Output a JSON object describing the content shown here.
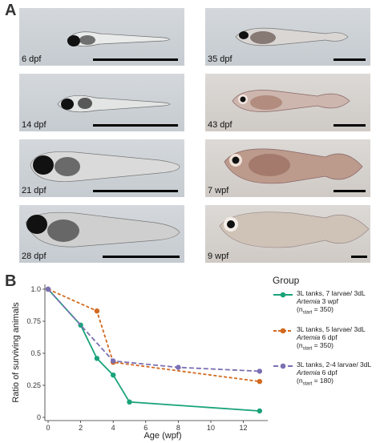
{
  "panels": {
    "a_label": "A",
    "b_label": "B"
  },
  "photos": [
    {
      "label": "6 dpf"
    },
    {
      "label": "14 dpf"
    },
    {
      "label": "21 dpf"
    },
    {
      "label": "28 dpf"
    },
    {
      "label": "35 dpf"
    },
    {
      "label": "43 dpf"
    },
    {
      "label": "7 wpf"
    },
    {
      "label": "9 wpf"
    }
  ],
  "legend": {
    "title": "Group",
    "items": [
      {
        "line1": "3L tanks, 7 larvae/ 3dL",
        "line2_italic": "Artemia",
        "line2_rest": " 3 wpf",
        "n_prefix": "(n",
        "n_sub": "start",
        "n_suffix": " = 350)",
        "color": "#1aa37a",
        "dash": "solid"
      },
      {
        "line1": "3L tanks, 5 larvae/ 3dL",
        "line2_italic": "Artemia",
        "line2_rest": " 6 dpf",
        "n_prefix": "(n",
        "n_sub": "start",
        "n_suffix": " = 350)",
        "color": "#d2691e",
        "dash": "dashed"
      },
      {
        "line1": "3L tanks, 2-4 larvae/ 3dL",
        "line2_italic": "Artemia",
        "line2_rest": " 6 dpf",
        "n_prefix": "(n",
        "n_sub": "start",
        "n_suffix": " = 180)",
        "color": "#7b6fb3",
        "dash": "dashed"
      }
    ]
  },
  "chart_data": {
    "type": "line",
    "xlabel": "Age (wpf)",
    "ylabel": "Ratio of surviving animals",
    "xlim": [
      0,
      13.5
    ],
    "ylim": [
      0,
      1.0
    ],
    "xticks": [
      0,
      2,
      4,
      6,
      8,
      10,
      12
    ],
    "yticks": [
      0,
      0.25,
      0.5,
      0.75,
      1.0
    ],
    "ytick_labels": [
      "0",
      "0.25",
      "0.5",
      "0.75",
      "1.0"
    ],
    "series": [
      {
        "name": "3L tanks, 7 larvae/ 3dL Artemia 3 wpf (nstart = 350)",
        "color": "#1aa37a",
        "dash": "solid",
        "x": [
          0,
          2,
          3,
          4,
          5,
          13
        ],
        "y": [
          1.0,
          0.72,
          0.46,
          0.33,
          0.12,
          0.05
        ]
      },
      {
        "name": "3L tanks, 5 larvae/ 3dL Artemia 6 dpf (nstart = 350)",
        "color": "#d2691e",
        "dash": "dashed",
        "x": [
          0,
          3,
          4,
          13
        ],
        "y": [
          1.0,
          0.83,
          0.43,
          0.28
        ]
      },
      {
        "name": "3L tanks, 2-4 larvae/ 3dL Artemia 6 dpf (nstart = 180)",
        "color": "#7b6fb3",
        "dash": "dashed",
        "x": [
          0,
          4,
          8,
          13
        ],
        "y": [
          1.0,
          0.44,
          0.39,
          0.36
        ]
      }
    ]
  }
}
